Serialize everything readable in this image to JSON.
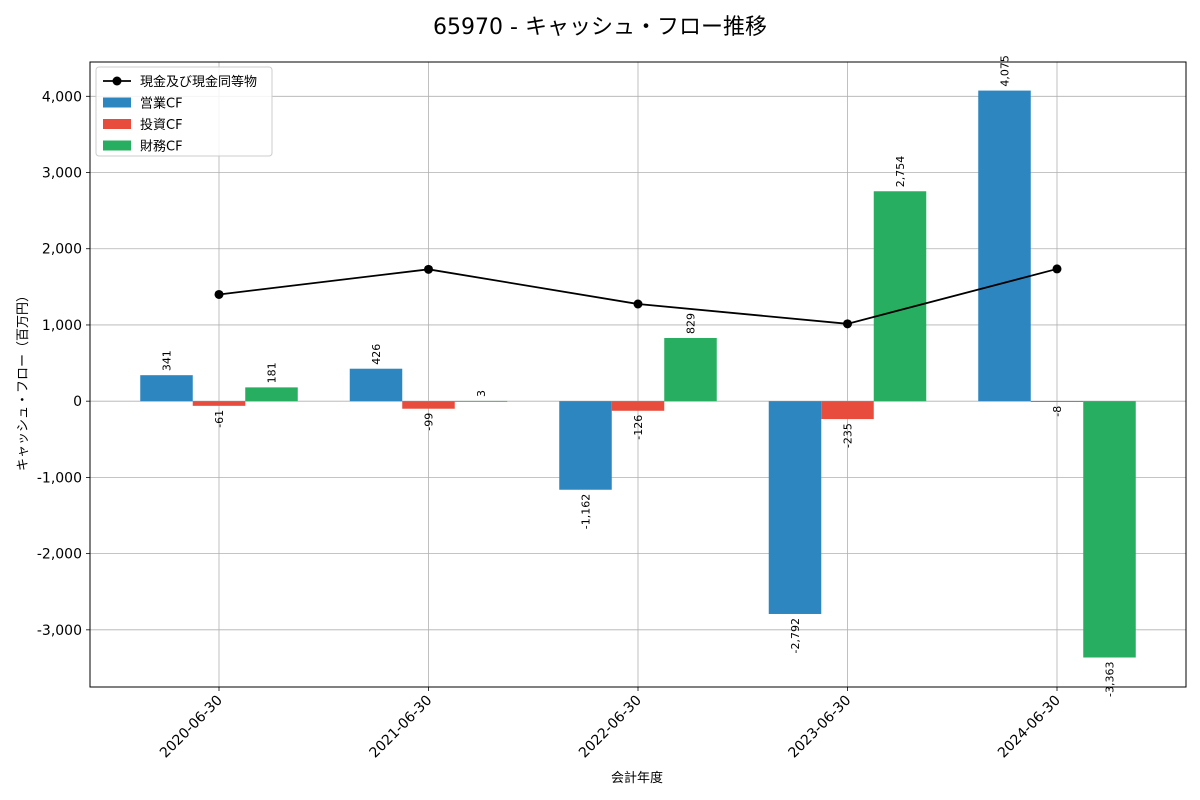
{
  "chart_data": {
    "type": "bar",
    "title": "65970 - キャッシュ・フロー推移",
    "xlabel": "会計年度",
    "ylabel": "キャッシュ・フロー（百万円）",
    "categories": [
      "2020-06-30",
      "2021-06-30",
      "2022-06-30",
      "2023-06-30",
      "2024-06-30"
    ],
    "ylim": [
      -3750,
      4450
    ],
    "yticks": [
      -3000,
      -2000,
      -1000,
      0,
      1000,
      2000,
      3000,
      4000
    ],
    "ytick_labels": [
      "-3,000",
      "-2,000",
      "-1,000",
      "0",
      "1,000",
      "2,000",
      "3,000",
      "4,000"
    ],
    "grid": true,
    "legend_position": "top-left",
    "series": [
      {
        "name": "営業CF",
        "kind": "bar",
        "color": "#2e86c1",
        "values": [
          341,
          426,
          -1162,
          -2792,
          4075
        ],
        "labels": [
          "341",
          "426",
          "-1,162",
          "-2,792",
          "4,075"
        ]
      },
      {
        "name": "投資CF",
        "kind": "bar",
        "color": "#e74c3c",
        "values": [
          -61,
          -99,
          -126,
          -235,
          -8
        ],
        "labels": [
          "-61",
          "-99",
          "-126",
          "-235",
          "-8"
        ]
      },
      {
        "name": "財務CF",
        "kind": "bar",
        "color": "#27ae60",
        "values": [
          181,
          3,
          829,
          2754,
          -3363
        ],
        "labels": [
          "181",
          "3",
          "829",
          "2,754",
          "-3,363"
        ]
      }
    ],
    "line_series": {
      "name": "現金及び現金同等物",
      "kind": "line",
      "color": "#000000",
      "values": [
        1400,
        1730,
        1275,
        1015,
        1735
      ]
    }
  }
}
